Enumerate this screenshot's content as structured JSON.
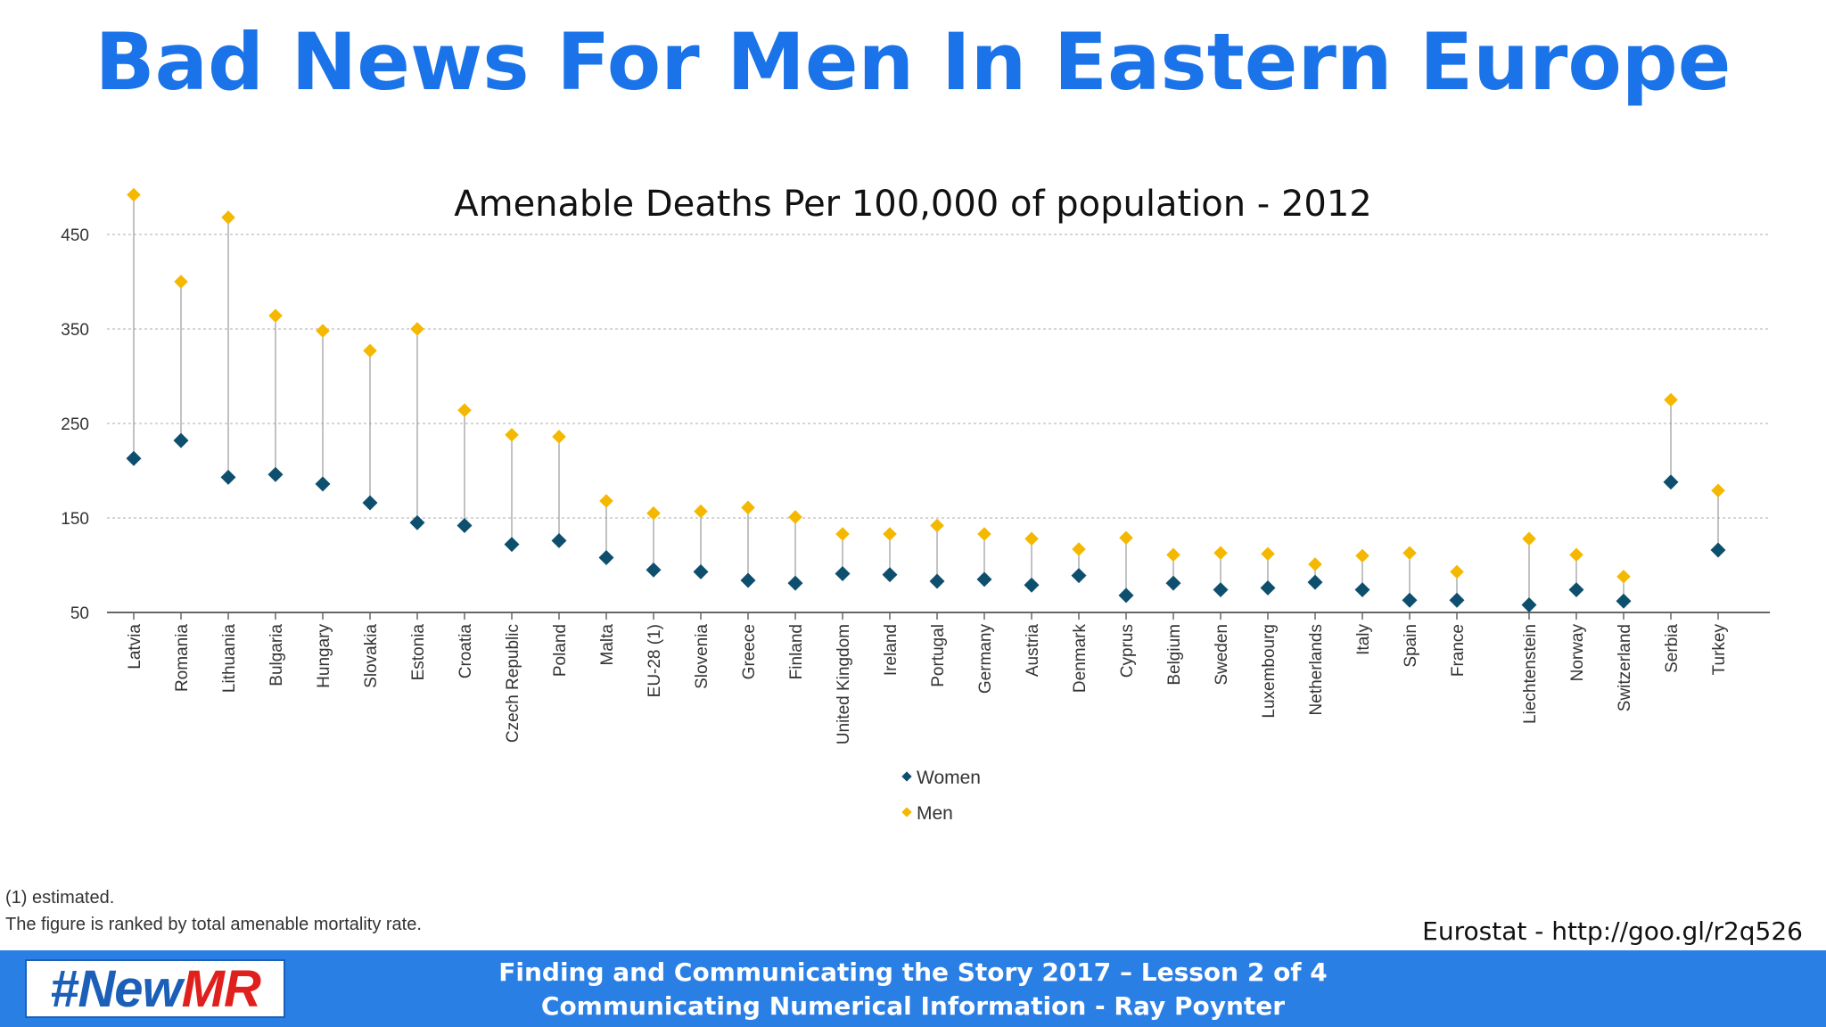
{
  "slide": {
    "title": "Bad News For Men In Eastern Europe",
    "notes": [
      "(1) estimated.",
      "The figure is ranked by total amenable mortality rate."
    ],
    "source": "Eurostat - http://goo.gl/r2q526"
  },
  "footer": {
    "logo_hash": "#New",
    "logo_mr": "MR",
    "line1": "Finding and Communicating the Story 2017 – Lesson 2 of 4",
    "line2": "Communicating Numerical Information - Ray Poynter"
  },
  "colors": {
    "women": "#0e4f6e",
    "men": "#f5b800",
    "title": "#1a73e8",
    "footer_bg": "#2a7fe5"
  },
  "chart_data": {
    "type": "scatter",
    "title": "Amenable Deaths Per 100,000 of population - 2012",
    "xlabel": "",
    "ylabel": "",
    "ylim": [
      50,
      450
    ],
    "yticks": [
      50,
      150,
      250,
      350,
      450
    ],
    "grid": true,
    "legend_position": "bottom",
    "categories": [
      "Latvia",
      "Romania",
      "Lithuania",
      "Bulgaria",
      "Hungary",
      "Slovakia",
      "Estonia",
      "Croatia",
      "Czech Republic",
      "Poland",
      "Malta",
      "EU-28 (1)",
      "Slovenia",
      "Greece",
      "Finland",
      "United Kingdom",
      "Ireland",
      "Portugal",
      "Germany",
      "Austria",
      "Denmark",
      "Cyprus",
      "Belgium",
      "Sweden",
      "Luxembourg",
      "Netherlands",
      "Italy",
      "Spain",
      "France",
      "Liechtenstein",
      "Norway",
      "Switzerland",
      "Serbia",
      "Turkey"
    ],
    "series": [
      {
        "name": "Women",
        "values": [
          213,
          232,
          193,
          196,
          186,
          166,
          145,
          142,
          122,
          126,
          108,
          95,
          93,
          84,
          81,
          91,
          90,
          83,
          85,
          79,
          89,
          68,
          81,
          74,
          76,
          82,
          74,
          63,
          63,
          58,
          74,
          62,
          188,
          116
        ]
      },
      {
        "name": "Men",
        "values": [
          492,
          400,
          468,
          364,
          348,
          327,
          350,
          264,
          238,
          236,
          168,
          155,
          157,
          161,
          151,
          133,
          133,
          142,
          133,
          128,
          117,
          129,
          111,
          113,
          112,
          101,
          110,
          113,
          93,
          128,
          111,
          88,
          275,
          179
        ]
      }
    ]
  }
}
